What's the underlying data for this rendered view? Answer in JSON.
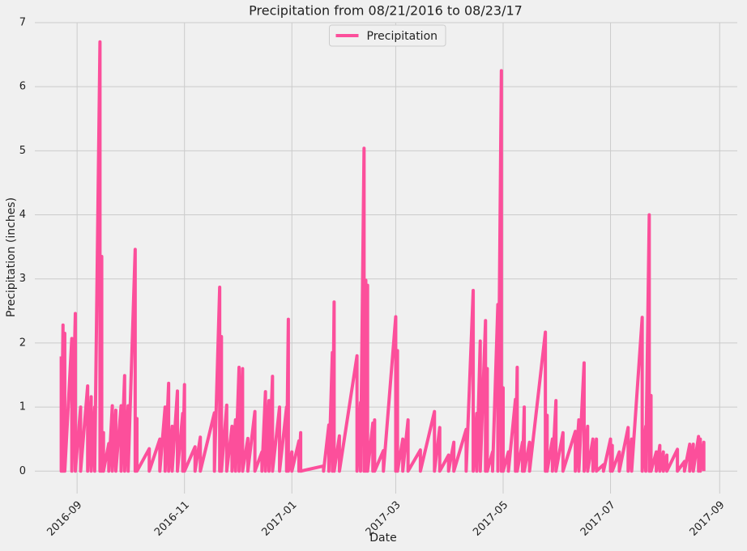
{
  "chart_data": {
    "type": "line",
    "title": "Precipitation from 08/21/2016 to 08/23/17",
    "xlabel": "Date",
    "ylabel": "Precipitation (inches)",
    "legend": "upper center",
    "grid": true,
    "xlim": [
      "2016-08-08",
      "2017-09-11"
    ],
    "ylim": [
      -0.35,
      7
    ],
    "xticks": [
      {
        "value": "2016-09-01",
        "label": "2016-09"
      },
      {
        "value": "2016-11-01",
        "label": "2016-11"
      },
      {
        "value": "2017-01-01",
        "label": "2017-01"
      },
      {
        "value": "2017-03-01",
        "label": "2017-03"
      },
      {
        "value": "2017-05-01",
        "label": "2017-05"
      },
      {
        "value": "2017-07-01",
        "label": "2017-07"
      },
      {
        "value": "2017-09-01",
        "label": "2017-09"
      }
    ],
    "yticks": [
      0,
      1,
      2,
      3,
      4,
      5,
      6,
      7
    ],
    "x": [
      "2016-08-23",
      "2016-08-23",
      "2016-08-24",
      "2016-08-24",
      "2016-08-25",
      "2016-08-25",
      "2016-08-29",
      "2016-08-29",
      "2016-08-31",
      "2016-08-31",
      "2016-09-03",
      "2016-09-03",
      "2016-09-07",
      "2016-09-07",
      "2016-09-09",
      "2016-09-09",
      "2016-09-11",
      "2016-09-11",
      "2016-09-14",
      "2016-09-14",
      "2016-09-15",
      "2016-09-15",
      "2016-09-16",
      "2016-09-16",
      "2016-09-19",
      "2016-09-19",
      "2016-09-21",
      "2016-09-21",
      "2016-09-23",
      "2016-09-23",
      "2016-09-26",
      "2016-09-26",
      "2016-09-28",
      "2016-09-28",
      "2016-09-30",
      "2016-09-30",
      "2016-10-04",
      "2016-10-04",
      "2016-10-05",
      "2016-10-05",
      "2016-10-12",
      "2016-10-12",
      "2016-10-18",
      "2016-10-18",
      "2016-10-21",
      "2016-10-21",
      "2016-10-23",
      "2016-10-23",
      "2016-10-25",
      "2016-10-25",
      "2016-10-28",
      "2016-10-28",
      "2016-10-31",
      "2016-10-31",
      "2016-11-01",
      "2016-11-01",
      "2016-11-07",
      "2016-11-07",
      "2016-11-10",
      "2016-11-10",
      "2016-11-18",
      "2016-11-18",
      "2016-11-21",
      "2016-11-21",
      "2016-11-22",
      "2016-11-22",
      "2016-11-25",
      "2016-11-25",
      "2016-11-28",
      "2016-11-28",
      "2016-11-30",
      "2016-11-30",
      "2016-12-02",
      "2016-12-02",
      "2016-12-04",
      "2016-12-04",
      "2016-12-07",
      "2016-12-07",
      "2016-12-11",
      "2016-12-11",
      "2016-12-15",
      "2016-12-15",
      "2016-12-17",
      "2016-12-17",
      "2016-12-19",
      "2016-12-19",
      "2016-12-21",
      "2016-12-21",
      "2016-12-25",
      "2016-12-25",
      "2016-12-29",
      "2016-12-29",
      "2016-12-30",
      "2016-12-30",
      "2017-01-01",
      "2017-01-01",
      "2017-01-05",
      "2017-01-05",
      "2017-01-06",
      "2017-01-06",
      "2017-01-19",
      "2017-01-19",
      "2017-01-22",
      "2017-01-22",
      "2017-01-24",
      "2017-01-24",
      "2017-01-25",
      "2017-01-25",
      "2017-01-28",
      "2017-01-28",
      "2017-02-07",
      "2017-02-07",
      "2017-02-09",
      "2017-02-09",
      "2017-02-11",
      "2017-02-11",
      "2017-02-12",
      "2017-02-12",
      "2017-02-13",
      "2017-02-13",
      "2017-02-16",
      "2017-02-16",
      "2017-02-17",
      "2017-02-17",
      "2017-02-22",
      "2017-02-22",
      "2017-03-01",
      "2017-03-01",
      "2017-03-02",
      "2017-03-02",
      "2017-03-05",
      "2017-03-05",
      "2017-03-08",
      "2017-03-08",
      "2017-03-15",
      "2017-03-15",
      "2017-03-23",
      "2017-03-23",
      "2017-03-26",
      "2017-03-26",
      "2017-03-31",
      "2017-03-31",
      "2017-04-03",
      "2017-04-03",
      "2017-04-10",
      "2017-04-10",
      "2017-04-14",
      "2017-04-14",
      "2017-04-16",
      "2017-04-16",
      "2017-04-18",
      "2017-04-18",
      "2017-04-21",
      "2017-04-21",
      "2017-04-22",
      "2017-04-22",
      "2017-04-25",
      "2017-04-25",
      "2017-04-28",
      "2017-04-28",
      "2017-04-30",
      "2017-04-30",
      "2017-05-01",
      "2017-05-01",
      "2017-05-04",
      "2017-05-04",
      "2017-05-08",
      "2017-05-08",
      "2017-05-09",
      "2017-05-09",
      "2017-05-12",
      "2017-05-12",
      "2017-05-13",
      "2017-05-13",
      "2017-05-16",
      "2017-05-16",
      "2017-05-25",
      "2017-05-25",
      "2017-05-26",
      "2017-05-26",
      "2017-05-29",
      "2017-05-29",
      "2017-05-31",
      "2017-05-31",
      "2017-06-04",
      "2017-06-04",
      "2017-06-11",
      "2017-06-11",
      "2017-06-13",
      "2017-06-13",
      "2017-06-16",
      "2017-06-16",
      "2017-06-18",
      "2017-06-18",
      "2017-06-21",
      "2017-06-21",
      "2017-06-23",
      "2017-06-23",
      "2017-06-27",
      "2017-06-27",
      "2017-07-01",
      "2017-07-01",
      "2017-07-02",
      "2017-07-02",
      "2017-07-06",
      "2017-07-06",
      "2017-07-11",
      "2017-07-11",
      "2017-07-13",
      "2017-07-13",
      "2017-07-19",
      "2017-07-19",
      "2017-07-21",
      "2017-07-21",
      "2017-07-23",
      "2017-07-23",
      "2017-07-24",
      "2017-07-24",
      "2017-07-27",
      "2017-07-27",
      "2017-07-29",
      "2017-07-29",
      "2017-07-31",
      "2017-07-31",
      "2017-08-02",
      "2017-08-02",
      "2017-08-08",
      "2017-08-08",
      "2017-08-12",
      "2017-08-12",
      "2017-08-15",
      "2017-08-15",
      "2017-08-17",
      "2017-08-17",
      "2017-08-20",
      "2017-08-20",
      "2017-08-21",
      "2017-08-21",
      "2017-08-23",
      "2017-08-23"
    ],
    "series": [
      {
        "name": "Precipitation",
        "color": "#fc4f9b",
        "values": [
          1.79,
          0,
          2.28,
          0,
          2.15,
          0,
          2.07,
          0,
          2.46,
          0,
          1.0,
          0,
          1.33,
          0,
          1.16,
          0,
          1.0,
          0,
          6.7,
          0,
          3.35,
          0,
          0.6,
          0,
          0.43,
          0,
          1.02,
          0,
          0.95,
          0,
          1.02,
          0,
          1.49,
          0,
          1.02,
          0,
          3.46,
          0,
          0.82,
          0,
          0.35,
          0,
          0.5,
          0,
          1.0,
          0,
          1.37,
          0,
          0.7,
          0,
          1.25,
          0,
          0.9,
          0,
          1.35,
          0,
          0.38,
          0,
          0.53,
          0,
          0.91,
          0,
          2.87,
          0,
          2.1,
          0,
          1.03,
          0,
          0.7,
          0,
          0.8,
          0,
          1.62,
          0,
          1.6,
          0,
          0.51,
          0,
          0.93,
          0,
          0.3,
          0,
          1.24,
          0,
          1.1,
          0,
          1.48,
          0,
          1.0,
          0,
          1.0,
          0,
          2.37,
          0,
          0.3,
          0,
          0.47,
          0,
          0.6,
          0,
          0.08,
          0,
          0.72,
          0,
          1.85,
          0,
          2.64,
          0,
          0.55,
          0,
          1.8,
          0,
          1.07,
          0,
          5.04,
          0,
          2.98,
          0,
          2.9,
          0,
          0.75,
          0,
          0.8,
          0,
          0.32,
          0,
          2.41,
          0,
          1.88,
          0,
          0.5,
          0,
          0.8,
          0,
          0.33,
          0,
          0.93,
          0,
          0.68,
          0,
          0.25,
          0,
          0.45,
          0,
          0.65,
          0,
          2.82,
          0,
          0.9,
          0,
          2.03,
          0,
          2.35,
          0,
          1.6,
          0,
          0.3,
          0,
          2.6,
          0,
          6.25,
          0,
          1.3,
          0,
          0.3,
          0,
          1.12,
          0,
          1.62,
          0,
          0.45,
          0,
          1.0,
          0,
          0.45,
          0,
          2.17,
          0,
          0.87,
          0,
          0.5,
          0,
          1.1,
          0,
          0.6,
          0,
          0.62,
          0,
          0.8,
          0,
          1.69,
          0,
          0.7,
          0,
          0.5,
          0,
          0.5,
          0,
          0.1,
          0,
          0.5,
          0,
          0.4,
          0,
          0.3,
          0,
          0.68,
          0,
          0.5,
          0,
          2.4,
          0,
          0.7,
          0,
          4.0,
          0,
          1.18,
          0,
          0.3,
          0,
          0.4,
          0,
          0.3,
          0,
          0.25,
          0,
          0.34,
          0,
          0.15,
          0,
          0.42,
          0,
          0.42,
          0,
          0.54,
          0,
          0.5,
          0,
          0.45,
          0
        ]
      }
    ]
  }
}
